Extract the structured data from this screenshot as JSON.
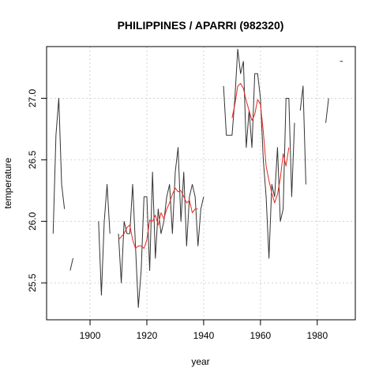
{
  "chart_data": {
    "type": "line",
    "title": "PHILIPPINES / APARRI (982320)",
    "xlabel": "year",
    "ylabel": "temperature",
    "xlim": [
      1884.7,
      1993.4
    ],
    "ylim": [
      25.2,
      27.42
    ],
    "x_ticks": [
      1900,
      1920,
      1940,
      1960,
      1980
    ],
    "y_ticks": [
      25.5,
      26.0,
      26.5,
      27.0
    ],
    "grid": true,
    "colors": {
      "annual": "#333333",
      "smoothed": "#e8281e",
      "grid": "#d3d3d3"
    },
    "series": [
      {
        "role": "annual",
        "color": "#333333",
        "segments": [
          [
            [
              1887,
              25.9
            ],
            [
              1888,
              26.7
            ],
            [
              1889,
              27.0
            ],
            [
              1890,
              26.3
            ],
            [
              1891,
              26.1
            ]
          ],
          [
            [
              1893,
              25.6
            ],
            [
              1894,
              25.7
            ]
          ],
          [
            [
              1903,
              26.0
            ],
            [
              1904,
              25.4
            ],
            [
              1905,
              26.0
            ],
            [
              1906,
              26.3
            ],
            [
              1907,
              25.9
            ]
          ],
          [
            [
              1910,
              25.9
            ],
            [
              1911,
              25.5
            ],
            [
              1912,
              26.0
            ],
            [
              1913,
              25.9
            ],
            [
              1914,
              25.9
            ],
            [
              1915,
              26.3
            ],
            [
              1916,
              25.8
            ],
            [
              1917,
              25.3
            ],
            [
              1918,
              25.6
            ],
            [
              1919,
              26.2
            ],
            [
              1920,
              26.2
            ],
            [
              1921,
              25.6
            ],
            [
              1922,
              26.4
            ],
            [
              1923,
              25.7
            ],
            [
              1924,
              26.1
            ],
            [
              1925,
              25.9
            ],
            [
              1926,
              26.0
            ],
            [
              1927,
              26.2
            ],
            [
              1928,
              26.3
            ],
            [
              1929,
              25.9
            ],
            [
              1930,
              26.4
            ],
            [
              1931,
              26.6
            ],
            [
              1932,
              26.0
            ],
            [
              1933,
              26.4
            ],
            [
              1934,
              25.8
            ],
            [
              1935,
              26.2
            ],
            [
              1936,
              26.3
            ],
            [
              1937,
              26.2
            ],
            [
              1938,
              25.8
            ],
            [
              1939,
              26.1
            ],
            [
              1940,
              26.2
            ]
          ],
          [
            [
              1947,
              27.1
            ],
            [
              1948,
              26.7
            ],
            [
              1949,
              26.7
            ],
            [
              1950,
              26.7
            ],
            [
              1951,
              27.0
            ],
            [
              1952,
              27.4
            ],
            [
              1953,
              27.2
            ],
            [
              1954,
              27.3
            ],
            [
              1955,
              26.6
            ],
            [
              1956,
              26.9
            ],
            [
              1957,
              26.6
            ],
            [
              1958,
              27.2
            ],
            [
              1959,
              27.2
            ],
            [
              1960,
              27.0
            ],
            [
              1961,
              26.5
            ],
            [
              1962,
              26.2
            ],
            [
              1963,
              25.7
            ],
            [
              1964,
              26.3
            ],
            [
              1965,
              26.2
            ],
            [
              1966,
              26.6
            ],
            [
              1967,
              26.0
            ],
            [
              1968,
              26.1
            ],
            [
              1969,
              27.0
            ],
            [
              1970,
              27.0
            ],
            [
              1971,
              26.2
            ],
            [
              1972,
              26.8
            ]
          ],
          [
            [
              1974,
              26.9
            ],
            [
              1975,
              27.1
            ],
            [
              1976,
              26.3
            ]
          ],
          [
            [
              1983,
              26.8
            ],
            [
              1984,
              27.0
            ]
          ],
          [
            [
              1988,
              27.3
            ],
            [
              1989,
              27.3
            ]
          ]
        ]
      },
      {
        "role": "smoothed",
        "color": "#e8281e",
        "segments": [
          [
            [
              1910,
              25.85
            ],
            [
              1912,
              25.9
            ],
            [
              1913,
              25.95
            ],
            [
              1914,
              25.97
            ],
            [
              1915,
              25.85
            ],
            [
              1916,
              25.78
            ],
            [
              1917,
              25.8
            ],
            [
              1918,
              25.8
            ],
            [
              1919,
              25.78
            ],
            [
              1920,
              25.85
            ],
            [
              1921,
              26.01
            ],
            [
              1922,
              26.0
            ],
            [
              1923,
              26.05
            ],
            [
              1924,
              25.97
            ],
            [
              1925,
              26.07
            ],
            [
              1926,
              26.02
            ],
            [
              1927,
              26.1
            ],
            [
              1928,
              26.15
            ],
            [
              1929,
              26.22
            ],
            [
              1930,
              26.27
            ],
            [
              1931,
              26.24
            ],
            [
              1932,
              26.25
            ],
            [
              1933,
              26.2
            ],
            [
              1934,
              26.15
            ],
            [
              1935,
              26.17
            ],
            [
              1936,
              26.07
            ],
            [
              1937,
              26.1
            ],
            [
              1938,
              26.1
            ]
          ],
          [
            [
              1950,
              26.84
            ],
            [
              1951,
              26.95
            ],
            [
              1952,
              27.1
            ],
            [
              1953,
              27.12
            ],
            [
              1954,
              27.08
            ],
            [
              1955,
              26.98
            ],
            [
              1956,
              26.9
            ],
            [
              1957,
              26.82
            ],
            [
              1958,
              26.87
            ],
            [
              1959,
              26.99
            ],
            [
              1960,
              26.95
            ],
            [
              1961,
              26.73
            ],
            [
              1962,
              26.45
            ],
            [
              1963,
              26.33
            ],
            [
              1964,
              26.23
            ],
            [
              1965,
              26.15
            ],
            [
              1966,
              26.22
            ],
            [
              1967,
              26.35
            ],
            [
              1968,
              26.55
            ],
            [
              1969,
              26.45
            ],
            [
              1970,
              26.6
            ]
          ]
        ]
      }
    ]
  }
}
